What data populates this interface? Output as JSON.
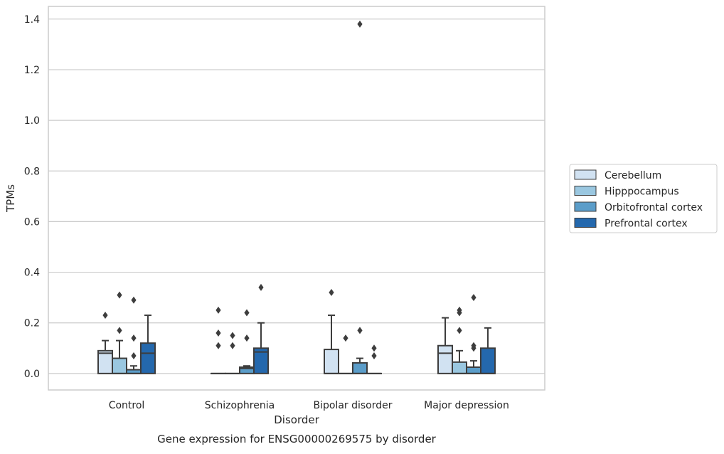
{
  "chart_data": {
    "type": "box",
    "caption": "Gene expression for ENSG00000269575 by disorder",
    "xlabel": "Disorder",
    "ylabel": "TPMs",
    "ylim": [
      -0.065,
      1.45
    ],
    "yticks": [
      0.0,
      0.2,
      0.4,
      0.6,
      0.8,
      1.0,
      1.2,
      1.4
    ],
    "ytick_labels": [
      "0.0",
      "0.2",
      "0.4",
      "0.6",
      "0.8",
      "1.0",
      "1.2",
      "1.4"
    ],
    "grid": "y",
    "legend_position": "right",
    "categories": [
      "Control",
      "Schizophrenia",
      "Bipolar disorder",
      "Major depression"
    ],
    "series": [
      {
        "name": "Cerebellum",
        "color": "#d1e2f2",
        "boxes": [
          {
            "q1": 0.0,
            "median": 0.08,
            "q3": 0.09,
            "whisker_low": 0.0,
            "whisker_high": 0.13,
            "outliers": [
              0.23
            ]
          },
          {
            "q1": 0.0,
            "median": 0.0,
            "q3": 0.0,
            "whisker_low": 0.0,
            "whisker_high": 0.0,
            "outliers": [
              0.25,
              0.16,
              0.11
            ]
          },
          {
            "q1": 0.0,
            "median": 0.0,
            "q3": 0.095,
            "whisker_low": 0.0,
            "whisker_high": 0.23,
            "outliers": [
              0.32
            ]
          },
          {
            "q1": 0.0,
            "median": 0.08,
            "q3": 0.11,
            "whisker_low": 0.0,
            "whisker_high": 0.22,
            "outliers": []
          }
        ]
      },
      {
        "name": "Hipppocampus",
        "color": "#9ac7e0",
        "boxes": [
          {
            "q1": 0.0,
            "median": 0.0,
            "q3": 0.06,
            "whisker_low": 0.0,
            "whisker_high": 0.13,
            "outliers": [
              0.31,
              0.17
            ]
          },
          {
            "q1": 0.0,
            "median": 0.0,
            "q3": 0.0,
            "whisker_low": 0.0,
            "whisker_high": 0.0,
            "outliers": [
              0.15,
              0.11
            ]
          },
          {
            "q1": 0.0,
            "median": 0.0,
            "q3": 0.0,
            "whisker_low": 0.0,
            "whisker_high": 0.0,
            "outliers": [
              0.14
            ]
          },
          {
            "q1": 0.0,
            "median": 0.0,
            "q3": 0.045,
            "whisker_low": 0.0,
            "whisker_high": 0.09,
            "outliers": [
              0.25,
              0.24,
              0.17
            ]
          }
        ]
      },
      {
        "name": "Orbitofrontal cortex",
        "color": "#5b9dc9",
        "boxes": [
          {
            "q1": 0.0,
            "median": 0.0,
            "q3": 0.015,
            "whisker_low": 0.0,
            "whisker_high": 0.03,
            "outliers": [
              0.29,
              0.14,
              0.07
            ]
          },
          {
            "q1": 0.0,
            "median": 0.02,
            "q3": 0.025,
            "whisker_low": 0.0,
            "whisker_high": 0.03,
            "outliers": [
              0.24,
              0.14
            ]
          },
          {
            "q1": 0.0,
            "median": 0.0,
            "q3": 0.042,
            "whisker_low": 0.0,
            "whisker_high": 0.06,
            "outliers": [
              1.38,
              0.17
            ]
          },
          {
            "q1": 0.0,
            "median": 0.0,
            "q3": 0.025,
            "whisker_low": 0.0,
            "whisker_high": 0.05,
            "outliers": [
              0.3,
              0.11,
              0.1
            ]
          }
        ]
      },
      {
        "name": "Prefrontal cortex",
        "color": "#2468ad",
        "boxes": [
          {
            "q1": 0.0,
            "median": 0.08,
            "q3": 0.12,
            "whisker_low": 0.0,
            "whisker_high": 0.23,
            "outliers": []
          },
          {
            "q1": 0.0,
            "median": 0.085,
            "q3": 0.1,
            "whisker_low": 0.0,
            "whisker_high": 0.2,
            "outliers": [
              0.34
            ]
          },
          {
            "q1": 0.0,
            "median": 0.0,
            "q3": 0.0,
            "whisker_low": 0.0,
            "whisker_high": 0.0,
            "outliers": [
              0.1,
              0.07
            ]
          },
          {
            "q1": 0.0,
            "median": 0.0,
            "q3": 0.1,
            "whisker_low": 0.0,
            "whisker_high": 0.18,
            "outliers": []
          }
        ]
      }
    ]
  }
}
